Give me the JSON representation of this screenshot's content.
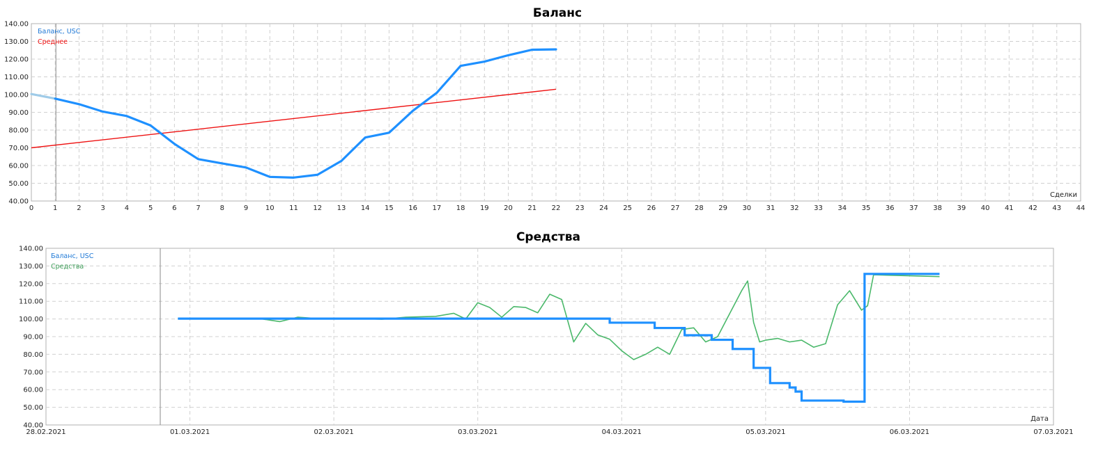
{
  "chart_data": [
    {
      "type": "line",
      "title": "Баланс",
      "xlabel": "Сделки",
      "ylabel": "",
      "xlim": [
        0,
        44
      ],
      "ylim": [
        40,
        140
      ],
      "y_ticks": [
        "40.00",
        "50.00",
        "60.00",
        "70.00",
        "80.00",
        "90.00",
        "100.00",
        "110.00",
        "120.00",
        "130.00",
        "140.00"
      ],
      "x_ticks": [
        "0",
        "1",
        "2",
        "3",
        "4",
        "5",
        "6",
        "7",
        "8",
        "9",
        "10",
        "11",
        "12",
        "13",
        "14",
        "15",
        "16",
        "17",
        "18",
        "19",
        "20",
        "21",
        "22",
        "23",
        "24",
        "25",
        "26",
        "27",
        "28",
        "29",
        "30",
        "31",
        "32",
        "33",
        "34",
        "35",
        "36",
        "37",
        "38",
        "39",
        "40",
        "41",
        "42",
        "43",
        "44"
      ],
      "grid": true,
      "legend_position": "top-left",
      "series": [
        {
          "name": "Баланс, USC",
          "color": "#1e90ff",
          "x": [
            0,
            1,
            2,
            3,
            4,
            5,
            6,
            7,
            8,
            9,
            10,
            11,
            12,
            13,
            14,
            15,
            16,
            17,
            18,
            19,
            20,
            21,
            22
          ],
          "values": [
            100.3,
            97.7,
            94.6,
            90.4,
            87.9,
            82.6,
            72.2,
            63.6,
            61.2,
            58.9,
            53.6,
            53.2,
            54.8,
            62.6,
            75.8,
            78.5,
            90.9,
            101.0,
            116.2,
            118.6,
            122.2,
            125.3,
            125.5
          ]
        },
        {
          "name": "Среднее",
          "color": "#ee1111",
          "x": [
            0,
            22
          ],
          "values": [
            70.0,
            103.0
          ]
        }
      ]
    },
    {
      "type": "line",
      "title": "Средства",
      "xlabel": "Дата",
      "ylabel": "",
      "ylim": [
        40,
        140
      ],
      "y_ticks": [
        "40.00",
        "50.00",
        "60.00",
        "70.00",
        "80.00",
        "90.00",
        "100.00",
        "110.00",
        "120.00",
        "130.00",
        "140.00"
      ],
      "x_ticks": [
        "28.02.2021",
        "01.03.2021",
        "02.03.2021",
        "03.03.2021",
        "04.03.2021",
        "05.03.2021",
        "06.03.2021",
        "07.03.2021"
      ],
      "grid": true,
      "legend_position": "top-left",
      "series": [
        {
          "name": "Баланс, USC",
          "color": "#1e90ff",
          "x": [
            "2021-02-28T22:00",
            "2021-03-03T22:00",
            "2021-03-03T22:00",
            "2021-03-04T05:30",
            "2021-03-04T05:30",
            "2021-03-04T10:30",
            "2021-03-04T10:30",
            "2021-03-04T15:00",
            "2021-03-04T15:00",
            "2021-03-04T18:30",
            "2021-03-04T18:30",
            "2021-03-04T22:00",
            "2021-03-04T22:00",
            "2021-03-05T00:45",
            "2021-03-05T00:45",
            "2021-03-05T04:00",
            "2021-03-05T04:00",
            "2021-03-05T05:00",
            "2021-03-05T05:00",
            "2021-03-05T06:00",
            "2021-03-05T06:00",
            "2021-03-05T13:00",
            "2021-03-05T13:00",
            "2021-03-05T16:30",
            "2021-03-05T16:30",
            "2021-03-06T05:00"
          ],
          "values": [
            100.2,
            100.2,
            97.9,
            97.9,
            94.9,
            94.9,
            90.8,
            90.8,
            88.2,
            88.2,
            83.0,
            83.0,
            72.3,
            72.3,
            63.7,
            63.7,
            61.2,
            61.2,
            58.9,
            58.9,
            53.8,
            53.8,
            53.2,
            53.2,
            125.5,
            125.5
          ]
        },
        {
          "name": "Средства",
          "color": "#4ab86a",
          "x": [
            "2021-02-28T22:00",
            "2021-03-01T06:00",
            "2021-03-01T12:00",
            "2021-03-01T15:00",
            "2021-03-01T18:00",
            "2021-03-01T21:00",
            "2021-03-02T04:00",
            "2021-03-02T08:00",
            "2021-03-02T12:00",
            "2021-03-02T17:00",
            "2021-03-02T20:00",
            "2021-03-02T22:00",
            "2021-03-03T00:00",
            "2021-03-03T02:00",
            "2021-03-03T04:00",
            "2021-03-03T06:00",
            "2021-03-03T08:00",
            "2021-03-03T10:00",
            "2021-03-03T12:00",
            "2021-03-03T14:00",
            "2021-03-03T16:00",
            "2021-03-03T18:00",
            "2021-03-03T20:00",
            "2021-03-03T22:00",
            "2021-03-04T00:00",
            "2021-03-04T02:00",
            "2021-03-04T04:00",
            "2021-03-04T06:00",
            "2021-03-04T08:00",
            "2021-03-04T10:00",
            "2021-03-04T12:00",
            "2021-03-04T14:00",
            "2021-03-04T16:00",
            "2021-03-04T18:00",
            "2021-03-04T20:00",
            "2021-03-04T21:00",
            "2021-03-04T22:00",
            "2021-03-04T23:00",
            "2021-03-05T00:00",
            "2021-03-05T02:00",
            "2021-03-05T04:00",
            "2021-03-05T06:00",
            "2021-03-05T08:00",
            "2021-03-05T10:00",
            "2021-03-05T12:00",
            "2021-03-05T14:00",
            "2021-03-05T16:00",
            "2021-03-05T17:00",
            "2021-03-05T18:00",
            "2021-03-06T05:00"
          ],
          "values": [
            100.3,
            100.2,
            100.0,
            98.5,
            101.0,
            100.3,
            100.3,
            99.8,
            101.0,
            101.5,
            103.2,
            100.0,
            109.2,
            106.5,
            101.0,
            107.0,
            106.5,
            103.5,
            114.0,
            111.0,
            87.0,
            97.5,
            91.0,
            88.5,
            82.0,
            77.0,
            80.0,
            84.0,
            80.0,
            94.0,
            95.0,
            87.0,
            90.0,
            103.0,
            116.0,
            121.5,
            98.0,
            87.0,
            88.0,
            89.0,
            87.0,
            88.0,
            84.0,
            86.0,
            108.0,
            116.0,
            105.0,
            107.5,
            125.0,
            124.0
          ]
        }
      ]
    }
  ]
}
